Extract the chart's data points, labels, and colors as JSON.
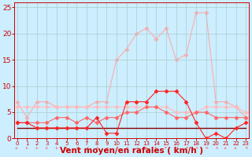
{
  "xlabel": "Vent moyen/en rafales ( km/h )",
  "background_color": "#cceeff",
  "grid_color": "#aacccc",
  "x": [
    0,
    1,
    2,
    3,
    4,
    5,
    6,
    7,
    8,
    9,
    10,
    11,
    12,
    13,
    14,
    15,
    16,
    17,
    18,
    19,
    20,
    21,
    22,
    23
  ],
  "series": [
    {
      "y": [
        7,
        4,
        7,
        7,
        6,
        6,
        6,
        6,
        7,
        7,
        15,
        17,
        20,
        21,
        19,
        21,
        15,
        16,
        24,
        24,
        7,
        7,
        6,
        4
      ],
      "color": "#ffaaaa",
      "marker": "D",
      "linewidth": 0.8,
      "markersize": 2.5,
      "zorder": 1
    },
    {
      "y": [
        6,
        6,
        6,
        6,
        6,
        6,
        6,
        6,
        6,
        6,
        6,
        6,
        6,
        6,
        6,
        6,
        5,
        5,
        5,
        6,
        6,
        6,
        6,
        5
      ],
      "color": "#ffbbbb",
      "marker": "D",
      "linewidth": 0.8,
      "markersize": 2.5,
      "zorder": 2
    },
    {
      "y": [
        3,
        3,
        3,
        3,
        4,
        4,
        3,
        4,
        3,
        4,
        4,
        5,
        5,
        6,
        6,
        5,
        4,
        4,
        5,
        5,
        4,
        4,
        4,
        4
      ],
      "color": "#ff6666",
      "marker": "D",
      "linewidth": 0.8,
      "markersize": 2.5,
      "zorder": 3
    },
    {
      "y": [
        2,
        2,
        2,
        2,
        2,
        2,
        2,
        2,
        2,
        2,
        2,
        2,
        2,
        2,
        2,
        2,
        2,
        2,
        2,
        2,
        2,
        2,
        2,
        2
      ],
      "color": "#880000",
      "marker": null,
      "linewidth": 1.0,
      "markersize": 0,
      "zorder": 4
    },
    {
      "y": [
        3,
        3,
        2,
        2,
        2,
        2,
        2,
        2,
        4,
        1,
        1,
        7,
        7,
        7,
        9,
        9,
        9,
        7,
        3,
        0,
        1,
        0,
        2,
        3
      ],
      "color": "#ff2222",
      "marker": "D",
      "linewidth": 0.8,
      "markersize": 2.5,
      "zorder": 5
    }
  ],
  "arrow_angles": [
    225,
    202,
    202,
    202,
    202,
    202,
    247,
    247,
    270,
    292,
    270,
    270,
    292,
    315,
    315,
    315,
    247,
    247,
    270,
    270,
    270,
    225,
    225,
    270
  ],
  "ylim": [
    0,
    26
  ],
  "yticks": [
    0,
    5,
    10,
    15,
    20,
    25
  ],
  "xlim": [
    -0.3,
    23.3
  ],
  "xticks": [
    0,
    1,
    2,
    3,
    4,
    5,
    6,
    7,
    8,
    9,
    10,
    11,
    12,
    13,
    14,
    15,
    16,
    17,
    18,
    19,
    20,
    21,
    22,
    23
  ],
  "tick_color": "#cc0000",
  "axis_color": "#cc0000",
  "xlabel_color": "#cc0000",
  "xlabel_fontsize": 7.5,
  "ytick_fontsize": 6.5,
  "xtick_fontsize": 5.0,
  "arrow_color": "#ff6666"
}
